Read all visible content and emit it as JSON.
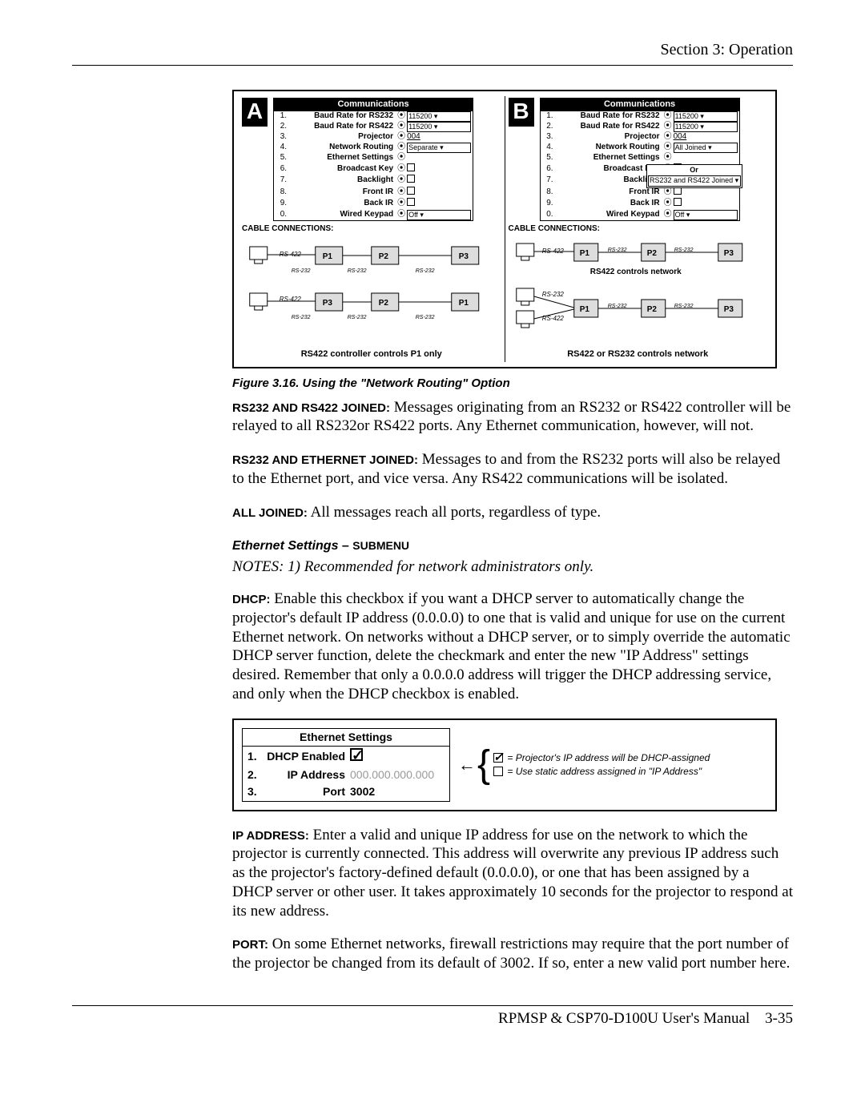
{
  "header": {
    "section_label": "Section 3: Operation"
  },
  "figure": {
    "caption": "Figure 3.16. Using the \"Network Routing\" Option",
    "panel_a_label": "A",
    "panel_b_label": "B",
    "menu_title": "Communications",
    "cable_header": "CABLE CONNECTIONS:",
    "panel_a_caption": "RS422 controller controls P1 only",
    "panel_b_mid_caption": "RS422 controls network",
    "panel_b_caption": "RS422 or RS232 controls network",
    "menu_rows": [
      {
        "n": "1.",
        "lbl": "Baud Rate for RS232",
        "type": "select",
        "val": "115200"
      },
      {
        "n": "2.",
        "lbl": "Baud Rate for RS422",
        "type": "select",
        "val": "115200"
      },
      {
        "n": "3.",
        "lbl": "Projector",
        "type": "text",
        "val": "004"
      },
      {
        "n": "4.",
        "lbl": "Network Routing",
        "type": "select",
        "val": "Separate"
      },
      {
        "n": "5.",
        "lbl": "Ethernet Settings",
        "type": "none",
        "val": ""
      },
      {
        "n": "6.",
        "lbl": "Broadcast Key",
        "type": "check",
        "val": ""
      },
      {
        "n": "7.",
        "lbl": "Backlight",
        "type": "check",
        "val": ""
      },
      {
        "n": "8.",
        "lbl": "Front IR",
        "type": "check",
        "val": ""
      },
      {
        "n": "9.",
        "lbl": "Back IR",
        "type": "check",
        "val": ""
      },
      {
        "n": "0.",
        "lbl": "Wired Keypad",
        "type": "select",
        "val": "Off"
      }
    ],
    "panel_b_routing_val": "All Joined",
    "dropdown_overlay": {
      "title": "Or",
      "item": "RS232 and RS422 Joined ▾"
    },
    "diagram_labels": {
      "p1": "P1",
      "p2": "P2",
      "p3": "P3",
      "rs422": "RS-422",
      "rs232": "RS-232"
    }
  },
  "paragraphs": {
    "p1_bold": "RS232 AND RS422 JOINED:",
    "p1_text": " Messages originating from an RS232 or RS422 controller will be relayed to all RS232or RS422 ports. Any Ethernet communication, however, will not.",
    "p2_bold": "RS232 AND ETHERNET JOINED:",
    "p2_text": " Messages to and from the RS232 ports will also be relayed to the Ethernet port, and vice versa. Any RS422 communications will be isolated.",
    "p3_bold": "ALL JOINED:",
    "p3_text": " All messages reach all ports, regardless of type."
  },
  "subhead": {
    "italic": "Ethernet Settings",
    "dash": " – ",
    "small": "SUBMENU"
  },
  "notes": "NOTES: 1) Recommended for network administrators only.",
  "dhcp_para_bold": "DHCP:",
  "dhcp_para_text": " Enable this checkbox if you want a DHCP server to automatically change the projector's default IP address (0.0.0.0) to one that is valid and unique for use on the current Ethernet network. On networks without a DHCP server, or to simply override the automatic DHCP server function, delete the checkmark and enter the new \"IP Address\" settings desired. Remember that only a 0.0.0.0 address will trigger the DHCP addressing service, and only when the DHCP checkbox is enabled.",
  "eth_figure": {
    "title": "Ethernet Settings",
    "rows": [
      {
        "n": "1.",
        "lbl": "DHCP Enabled",
        "val": "",
        "type": "check"
      },
      {
        "n": "2.",
        "lbl": "IP Address",
        "val": "000.000.000.000",
        "type": "grey"
      },
      {
        "n": "3.",
        "lbl": "Port",
        "val": "3002",
        "type": "text"
      }
    ],
    "legend": {
      "line1": " = Projector's IP address will be DHCP-assigned",
      "line2": " = Use static address assigned in \"IP Address\""
    }
  },
  "ip_para_bold": "IP ADDRESS:",
  "ip_para_text": " Enter a valid and unique IP address for use on the network to which the projector is currently connected. This address will overwrite any previous IP address such as the projector's factory-defined default (0.0.0.0), or one that has been assigned by a DHCP server or other user. It takes approximately 10 seconds for the projector to respond at its new address.",
  "port_para_bold": "PORT:",
  "port_para_text": " On some Ethernet networks, firewall restrictions may require that the port number of the projector be changed from its default of 3002. If so, enter a new valid port number here.",
  "footer": {
    "manual": "RPMSP & CSP70-D100U User's Manual",
    "page": "3-35"
  }
}
